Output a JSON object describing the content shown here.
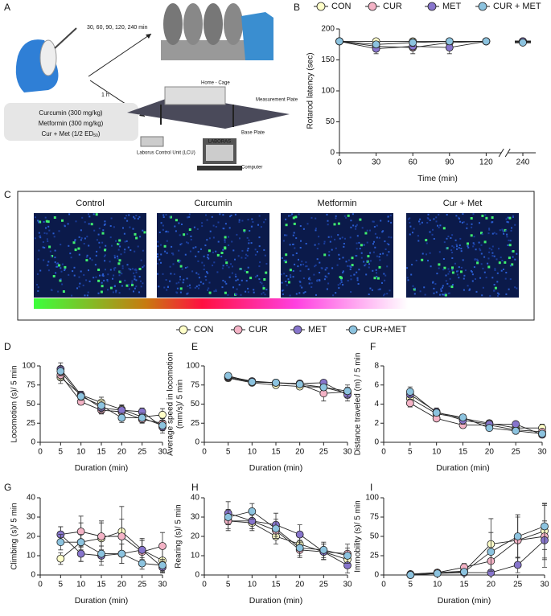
{
  "panel_labels": [
    "A",
    "B",
    "C",
    "D",
    "E",
    "F",
    "G",
    "H",
    "I"
  ],
  "schematic": {
    "timepoints": "30, 60, 90, 120, 240 min",
    "delay": "1 h",
    "treatments": [
      "Curcumin (300 mg/kg)",
      "Metformin (300 mg/kg)",
      {
        "text": "Cur + Met (1/2 ED",
        "sub": "50",
        "end": ")"
      }
    ],
    "laboras_parts": [
      "Home - Cage",
      "Measurement Plate",
      "Base Plate",
      "Laborus Control Unit (LCU)",
      "Computer",
      "LABORAS"
    ]
  },
  "heatmaps": {
    "labels": [
      "Control",
      "Curcumin",
      "Metformin",
      "Cur + Met"
    ]
  },
  "chart_data": [
    {
      "type": "line",
      "y_label": "Rotarod latency (sec)",
      "x_label": "Time (min)",
      "x": [
        0,
        30,
        60,
        90,
        120,
        240
      ],
      "xlim": [
        0,
        240
      ],
      "xticks": [
        0,
        30,
        60,
        90,
        120,
        240
      ],
      "x_axis_break": true,
      "ylim": [
        0,
        200
      ],
      "yticks": [
        0,
        50,
        100,
        150,
        200
      ],
      "series": [
        {
          "name": "CON",
          "color": "#ffffc8",
          "values": [
            180,
            180,
            180,
            180,
            180,
            180
          ],
          "errors": [
            0,
            3,
            3,
            3,
            2,
            2
          ]
        },
        {
          "name": "CUR",
          "color": "#f4b3c6",
          "values": [
            180,
            172,
            170,
            178,
            180,
            180
          ],
          "errors": [
            0,
            8,
            10,
            4,
            2,
            2
          ]
        },
        {
          "name": "MET",
          "color": "#8775cc",
          "values": [
            180,
            168,
            172,
            170,
            180,
            180
          ],
          "errors": [
            0,
            8,
            6,
            10,
            2,
            3
          ]
        },
        {
          "name": "CUR + MET",
          "color": "#8cc3df",
          "values": [
            180,
            175,
            178,
            180,
            180,
            178
          ],
          "errors": [
            0,
            5,
            6,
            3,
            2,
            3
          ]
        }
      ]
    },
    {
      "type": "line",
      "y_label": "Locomotion (s)/ 5 min",
      "x_label": "Duration (min)",
      "x": [
        5,
        10,
        15,
        20,
        25,
        30
      ],
      "xlim": [
        0,
        30
      ],
      "xticks": [
        0,
        5,
        10,
        15,
        20,
        25,
        30
      ],
      "ylim": [
        0,
        100
      ],
      "yticks": [
        0,
        25,
        50,
        75,
        100
      ],
      "series": [
        {
          "name": "CON",
          "color": "#ffffc8",
          "values": [
            85,
            62,
            52,
            43,
            33,
            36
          ],
          "errors": [
            8,
            5,
            7,
            6,
            6,
            8
          ]
        },
        {
          "name": "CUR",
          "color": "#f4b3c6",
          "values": [
            88,
            53,
            42,
            40,
            30,
            25
          ],
          "errors": [
            6,
            4,
            5,
            5,
            5,
            6
          ]
        },
        {
          "name": "MET",
          "color": "#8775cc",
          "values": [
            96,
            62,
            45,
            42,
            40,
            20
          ],
          "errors": [
            8,
            5,
            6,
            6,
            5,
            8
          ]
        },
        {
          "name": "CUR+MET",
          "color": "#8cc3df",
          "values": [
            93,
            60,
            48,
            32,
            32,
            22
          ],
          "errors": [
            6,
            5,
            6,
            6,
            6,
            7
          ]
        }
      ]
    },
    {
      "type": "line",
      "y_label": [
        "Average speed in locomotion",
        "(mm/s)/ 5 min"
      ],
      "x_label": "Duration (min)",
      "x": [
        5,
        10,
        15,
        20,
        25,
        30
      ],
      "xlim": [
        0,
        30
      ],
      "xticks": [
        0,
        5,
        10,
        15,
        20,
        25,
        30
      ],
      "ylim": [
        0,
        100
      ],
      "yticks": [
        0,
        25,
        50,
        75,
        100
      ],
      "series": [
        {
          "name": "CON",
          "color": "#ffffc8",
          "values": [
            84,
            78,
            75,
            73,
            72,
            64
          ],
          "errors": [
            4,
            3,
            3,
            3,
            4,
            6
          ]
        },
        {
          "name": "CUR",
          "color": "#f4b3c6",
          "values": [
            85,
            79,
            78,
            76,
            64,
            66
          ],
          "errors": [
            3,
            3,
            3,
            3,
            10,
            6
          ]
        },
        {
          "name": "MET",
          "color": "#8775cc",
          "values": [
            86,
            80,
            78,
            77,
            78,
            62
          ],
          "errors": [
            3,
            3,
            3,
            3,
            3,
            8
          ]
        },
        {
          "name": "CUR+MET",
          "color": "#8cc3df",
          "values": [
            87,
            79,
            78,
            76,
            72,
            67
          ],
          "errors": [
            3,
            3,
            3,
            3,
            4,
            8
          ]
        }
      ]
    },
    {
      "type": "line",
      "y_label": "Distance traveled (m) / 5 min",
      "x_label": "Duration (min)",
      "x": [
        5,
        10,
        15,
        20,
        25,
        30
      ],
      "xlim": [
        0,
        30
      ],
      "xticks": [
        0,
        5,
        10,
        15,
        20,
        25,
        30
      ],
      "ylim": [
        0,
        8
      ],
      "yticks": [
        0,
        2,
        4,
        6,
        8
      ],
      "series": [
        {
          "name": "CON",
          "color": "#ffffc8",
          "values": [
            4.6,
            3.0,
            2.5,
            2.0,
            1.5,
            1.5
          ],
          "errors": [
            0.5,
            0.3,
            0.4,
            0.3,
            0.4,
            0.4
          ]
        },
        {
          "name": "CUR",
          "color": "#f4b3c6",
          "values": [
            4.1,
            2.5,
            1.8,
            1.8,
            1.3,
            1.1
          ],
          "errors": [
            0.4,
            0.3,
            0.3,
            0.3,
            0.3,
            0.3
          ]
        },
        {
          "name": "MET",
          "color": "#8775cc",
          "values": [
            5.0,
            3.2,
            2.3,
            1.9,
            1.9,
            0.8
          ],
          "errors": [
            0.5,
            0.4,
            0.4,
            0.4,
            0.3,
            0.3
          ]
        },
        {
          "name": "CUR+MET",
          "color": "#8cc3df",
          "values": [
            5.3,
            3.1,
            2.6,
            1.5,
            1.2,
            0.9
          ],
          "errors": [
            0.5,
            0.3,
            0.3,
            0.3,
            0.3,
            0.3
          ]
        }
      ]
    },
    {
      "type": "line",
      "y_label": "Climbing (s)/ 5 min",
      "x_label": "Duration (min)",
      "x": [
        5,
        10,
        15,
        20,
        25,
        30
      ],
      "xlim": [
        0,
        30
      ],
      "xticks": [
        0,
        5,
        10,
        15,
        20,
        25,
        30
      ],
      "ylim": [
        0,
        40
      ],
      "yticks": [
        0,
        10,
        20,
        30,
        40
      ],
      "series": [
        {
          "name": "CON",
          "color": "#ffffc8",
          "values": [
            8.5,
            17,
            19,
            22.5,
            13,
            7.5
          ],
          "errors": [
            3,
            10,
            9,
            13,
            6,
            6
          ]
        },
        {
          "name": "CUR",
          "color": "#f4b3c6",
          "values": [
            21,
            22.5,
            20,
            20,
            12,
            15
          ],
          "errors": [
            4,
            8,
            7,
            9,
            6,
            7
          ]
        },
        {
          "name": "MET",
          "color": "#8775cc",
          "values": [
            21,
            11,
            10,
            11,
            13,
            4
          ],
          "errors": [
            4,
            4,
            5,
            5,
            5,
            3
          ]
        },
        {
          "name": "CUR+MET",
          "color": "#8cc3df",
          "values": [
            17,
            17,
            11,
            11,
            6,
            5
          ],
          "errors": [
            4,
            4,
            4,
            5,
            3,
            3
          ]
        }
      ]
    },
    {
      "type": "line",
      "y_label": "Rearing (s)/ 5 min",
      "x_label": "Duration (min)",
      "x": [
        5,
        10,
        15,
        20,
        25,
        30
      ],
      "xlim": [
        0,
        30
      ],
      "xticks": [
        0,
        5,
        10,
        15,
        20,
        25,
        30
      ],
      "ylim": [
        0,
        40
      ],
      "yticks": [
        0,
        10,
        20,
        30,
        40
      ],
      "series": [
        {
          "name": "CON",
          "color": "#ffffc8",
          "values": [
            28,
            27,
            20,
            16,
            12,
            8
          ],
          "errors": [
            5,
            4,
            4,
            4,
            4,
            4
          ]
        },
        {
          "name": "CUR",
          "color": "#f4b3c6",
          "values": [
            28,
            28,
            23,
            13,
            12,
            11
          ],
          "errors": [
            4,
            4,
            4,
            4,
            4,
            5
          ]
        },
        {
          "name": "MET",
          "color": "#8775cc",
          "values": [
            32,
            28,
            26,
            21,
            12,
            5
          ],
          "errors": [
            6,
            4,
            6,
            5,
            4,
            4
          ]
        },
        {
          "name": "CUR+MET",
          "color": "#8cc3df",
          "values": [
            30,
            33,
            24,
            14,
            13,
            10
          ],
          "errors": [
            4,
            4,
            5,
            4,
            4,
            4
          ]
        }
      ]
    },
    {
      "type": "line",
      "y_label": "Immobility (s)/ 5 min",
      "x_label": "Duration (min)",
      "x": [
        5,
        10,
        15,
        20,
        25,
        30
      ],
      "xlim": [
        0,
        30
      ],
      "xticks": [
        0,
        5,
        10,
        15,
        20,
        25,
        30
      ],
      "ylim": [
        0,
        100
      ],
      "yticks": [
        0,
        25,
        50,
        75,
        100
      ],
      "series": [
        {
          "name": "CON",
          "color": "#ffffc8",
          "values": [
            1,
            3,
            5,
            40,
            45,
            57
          ],
          "errors": [
            1,
            3,
            5,
            33,
            30,
            35
          ]
        },
        {
          "name": "CUR",
          "color": "#f4b3c6",
          "values": [
            1,
            3,
            10,
            18,
            45,
            50
          ],
          "errors": [
            1,
            3,
            5,
            15,
            33,
            40
          ]
        },
        {
          "name": "MET",
          "color": "#8775cc",
          "values": [
            0,
            2,
            3,
            3,
            13,
            45
          ],
          "errors": [
            0,
            2,
            3,
            3,
            10,
            25
          ]
        },
        {
          "name": "CUR+MET",
          "color": "#8cc3df",
          "values": [
            0,
            2,
            4,
            30,
            50,
            63
          ],
          "errors": [
            0,
            2,
            3,
            25,
            28,
            30
          ]
        }
      ]
    }
  ]
}
